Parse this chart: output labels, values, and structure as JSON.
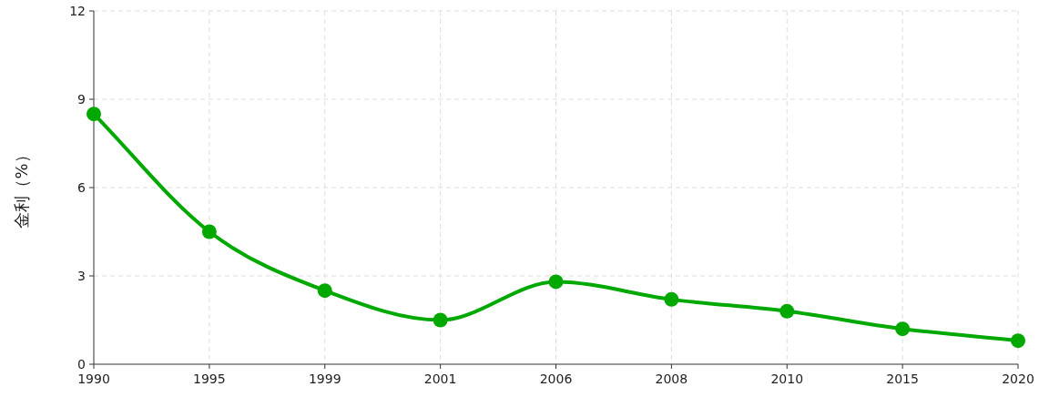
{
  "chart_data": {
    "type": "line",
    "ylabel": "金利（%）",
    "categories": [
      "1990",
      "1995",
      "1999",
      "2001",
      "2006",
      "2008",
      "2010",
      "2015",
      "2020"
    ],
    "series": [
      {
        "color": "#00a800",
        "values": [
          8.5,
          4.5,
          2.5,
          1.5,
          2.8,
          2.2,
          1.8,
          1.2,
          0.8
        ]
      }
    ],
    "ylim": [
      0,
      12
    ],
    "yticks": [
      0,
      3,
      6,
      9,
      12
    ],
    "grid": true,
    "marker": "circle",
    "line_style": "solid"
  }
}
